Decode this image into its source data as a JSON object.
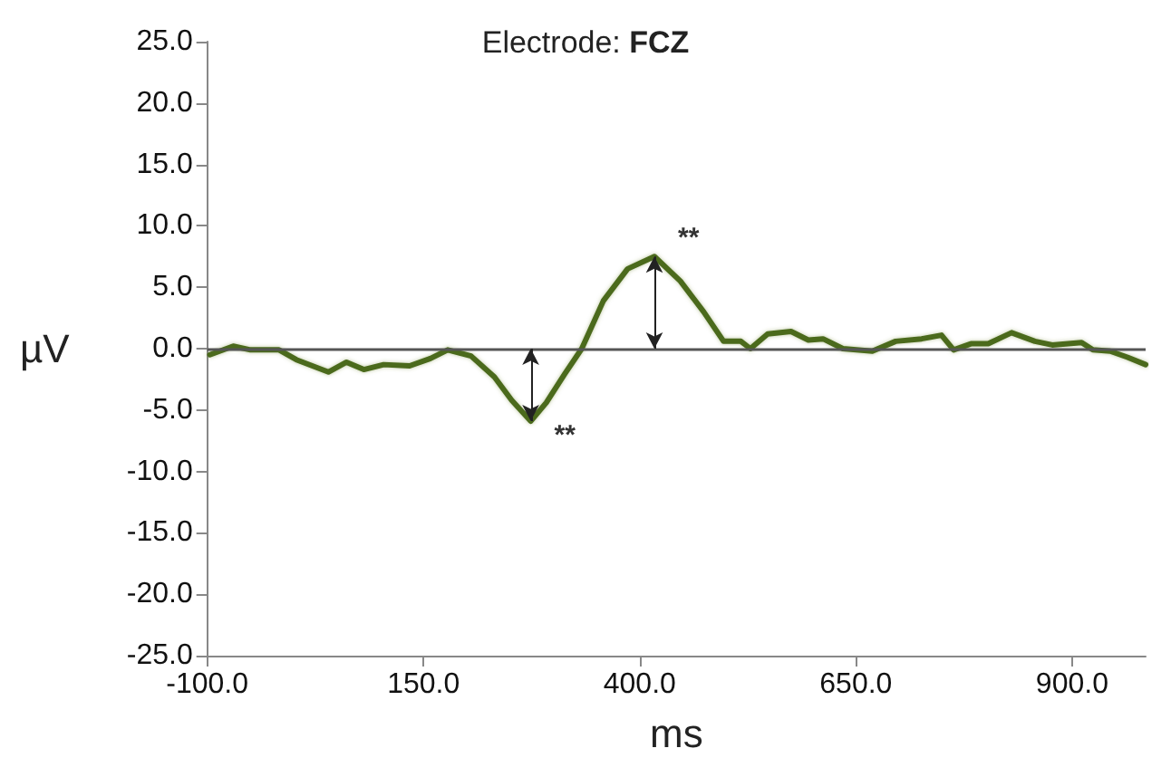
{
  "chart_data": {
    "type": "line",
    "title": "Electrode: FCZ",
    "xlabel": "ms",
    "ylabel": "µV",
    "xlim": [
      -100,
      985
    ],
    "ylim": [
      -25,
      25
    ],
    "xticks": [
      {
        "value": -100,
        "label": "-100.0"
      },
      {
        "value": 150,
        "label": "150.0"
      },
      {
        "value": 400,
        "label": "400.0"
      },
      {
        "value": 650,
        "label": "650.0"
      },
      {
        "value": 900,
        "label": "900.0"
      }
    ],
    "yticks": [
      {
        "value": -25,
        "label": "-25.0"
      },
      {
        "value": -20,
        "label": "-20.0"
      },
      {
        "value": -15,
        "label": "-15.0"
      },
      {
        "value": -10,
        "label": "-10.0"
      },
      {
        "value": -5,
        "label": "-5.0"
      },
      {
        "value": 0,
        "label": "0.0"
      },
      {
        "value": 5,
        "label": "5.0"
      },
      {
        "value": 10,
        "label": "10.0"
      },
      {
        "value": 15,
        "label": "15.0"
      },
      {
        "value": 20,
        "label": "20.0"
      },
      {
        "value": 25,
        "label": "25.0"
      }
    ],
    "grid": false,
    "marker": "none",
    "line_style": "solid",
    "ref_lines": [
      {
        "axis": "y",
        "value": 0,
        "color": "#555555"
      }
    ],
    "annotations": [
      {
        "text": "**",
        "x": 274,
        "y": -5.9
      },
      {
        "text": "**",
        "x": 417,
        "y": 7.5
      }
    ],
    "x": [
      -97,
      -70,
      -50,
      -17,
      3,
      40,
      61,
      81,
      104,
      134,
      158,
      178,
      205,
      232,
      252,
      274,
      292,
      313,
      333,
      358,
      386,
      417,
      447,
      474,
      497,
      517,
      528,
      548,
      575,
      595,
      612,
      635,
      669,
      696,
      726,
      749,
      763,
      783,
      803,
      830,
      857,
      877,
      911,
      924,
      944,
      964,
      985
    ],
    "series": [
      {
        "color": "#4b6b1c",
        "values": [
          -0.5,
          0.2,
          -0.1,
          -0.1,
          -0.9,
          -1.9,
          -1.1,
          -1.7,
          -1.3,
          -1.4,
          -0.8,
          -0.1,
          -0.6,
          -2.3,
          -4.2,
          -5.9,
          -4.4,
          -2.1,
          0,
          3.9,
          6.5,
          7.5,
          5.5,
          3.0,
          0.6,
          0.6,
          0,
          1.2,
          1.4,
          0.7,
          0.8,
          0,
          -0.2,
          0.6,
          0.8,
          1.1,
          -0.1,
          0.4,
          0.4,
          1.3,
          0.6,
          0.3,
          0.5,
          -0.1,
          -0.2,
          -0.7,
          -1.3
        ]
      }
    ]
  }
}
